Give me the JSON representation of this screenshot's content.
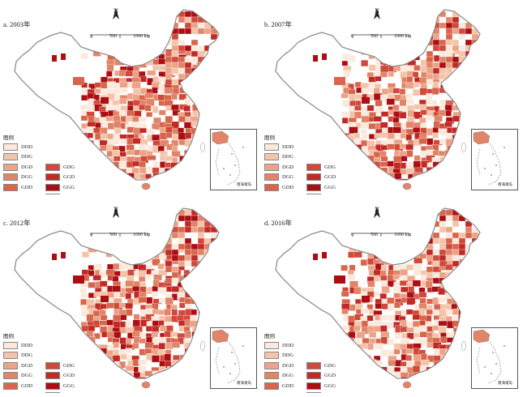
{
  "legend": {
    "title": "图例",
    "items": [
      {
        "code": "DDD",
        "color": "#fce9dc"
      },
      {
        "code": "DDG",
        "color": "#f4c4aa"
      },
      {
        "code": "DGD",
        "color": "#eca488"
      },
      {
        "code": "DGG",
        "color": "#e18468"
      },
      {
        "code": "GDD",
        "color": "#d8664c"
      },
      {
        "code": "GDG",
        "color": "#cf4a3a"
      },
      {
        "code": "GGD",
        "color": "#c22a26"
      },
      {
        "code": "GGG",
        "color": "#ad0e14"
      },
      {
        "code": "无数据区",
        "color": "#ffffff"
      }
    ]
  },
  "north_label": "N",
  "scale": {
    "labels": [
      "0",
      "500",
      "1000 km"
    ]
  },
  "inset_label": "南海诸岛",
  "panels": [
    {
      "title": "a. 2003年",
      "legend_title": "图例"
    },
    {
      "title": "b. 2007年",
      "legend_title": "图例"
    },
    {
      "title": "c. 2012年",
      "legend_title": "图例"
    },
    {
      "title": "d. 2016年",
      "legend_title": "图例"
    }
  ]
}
